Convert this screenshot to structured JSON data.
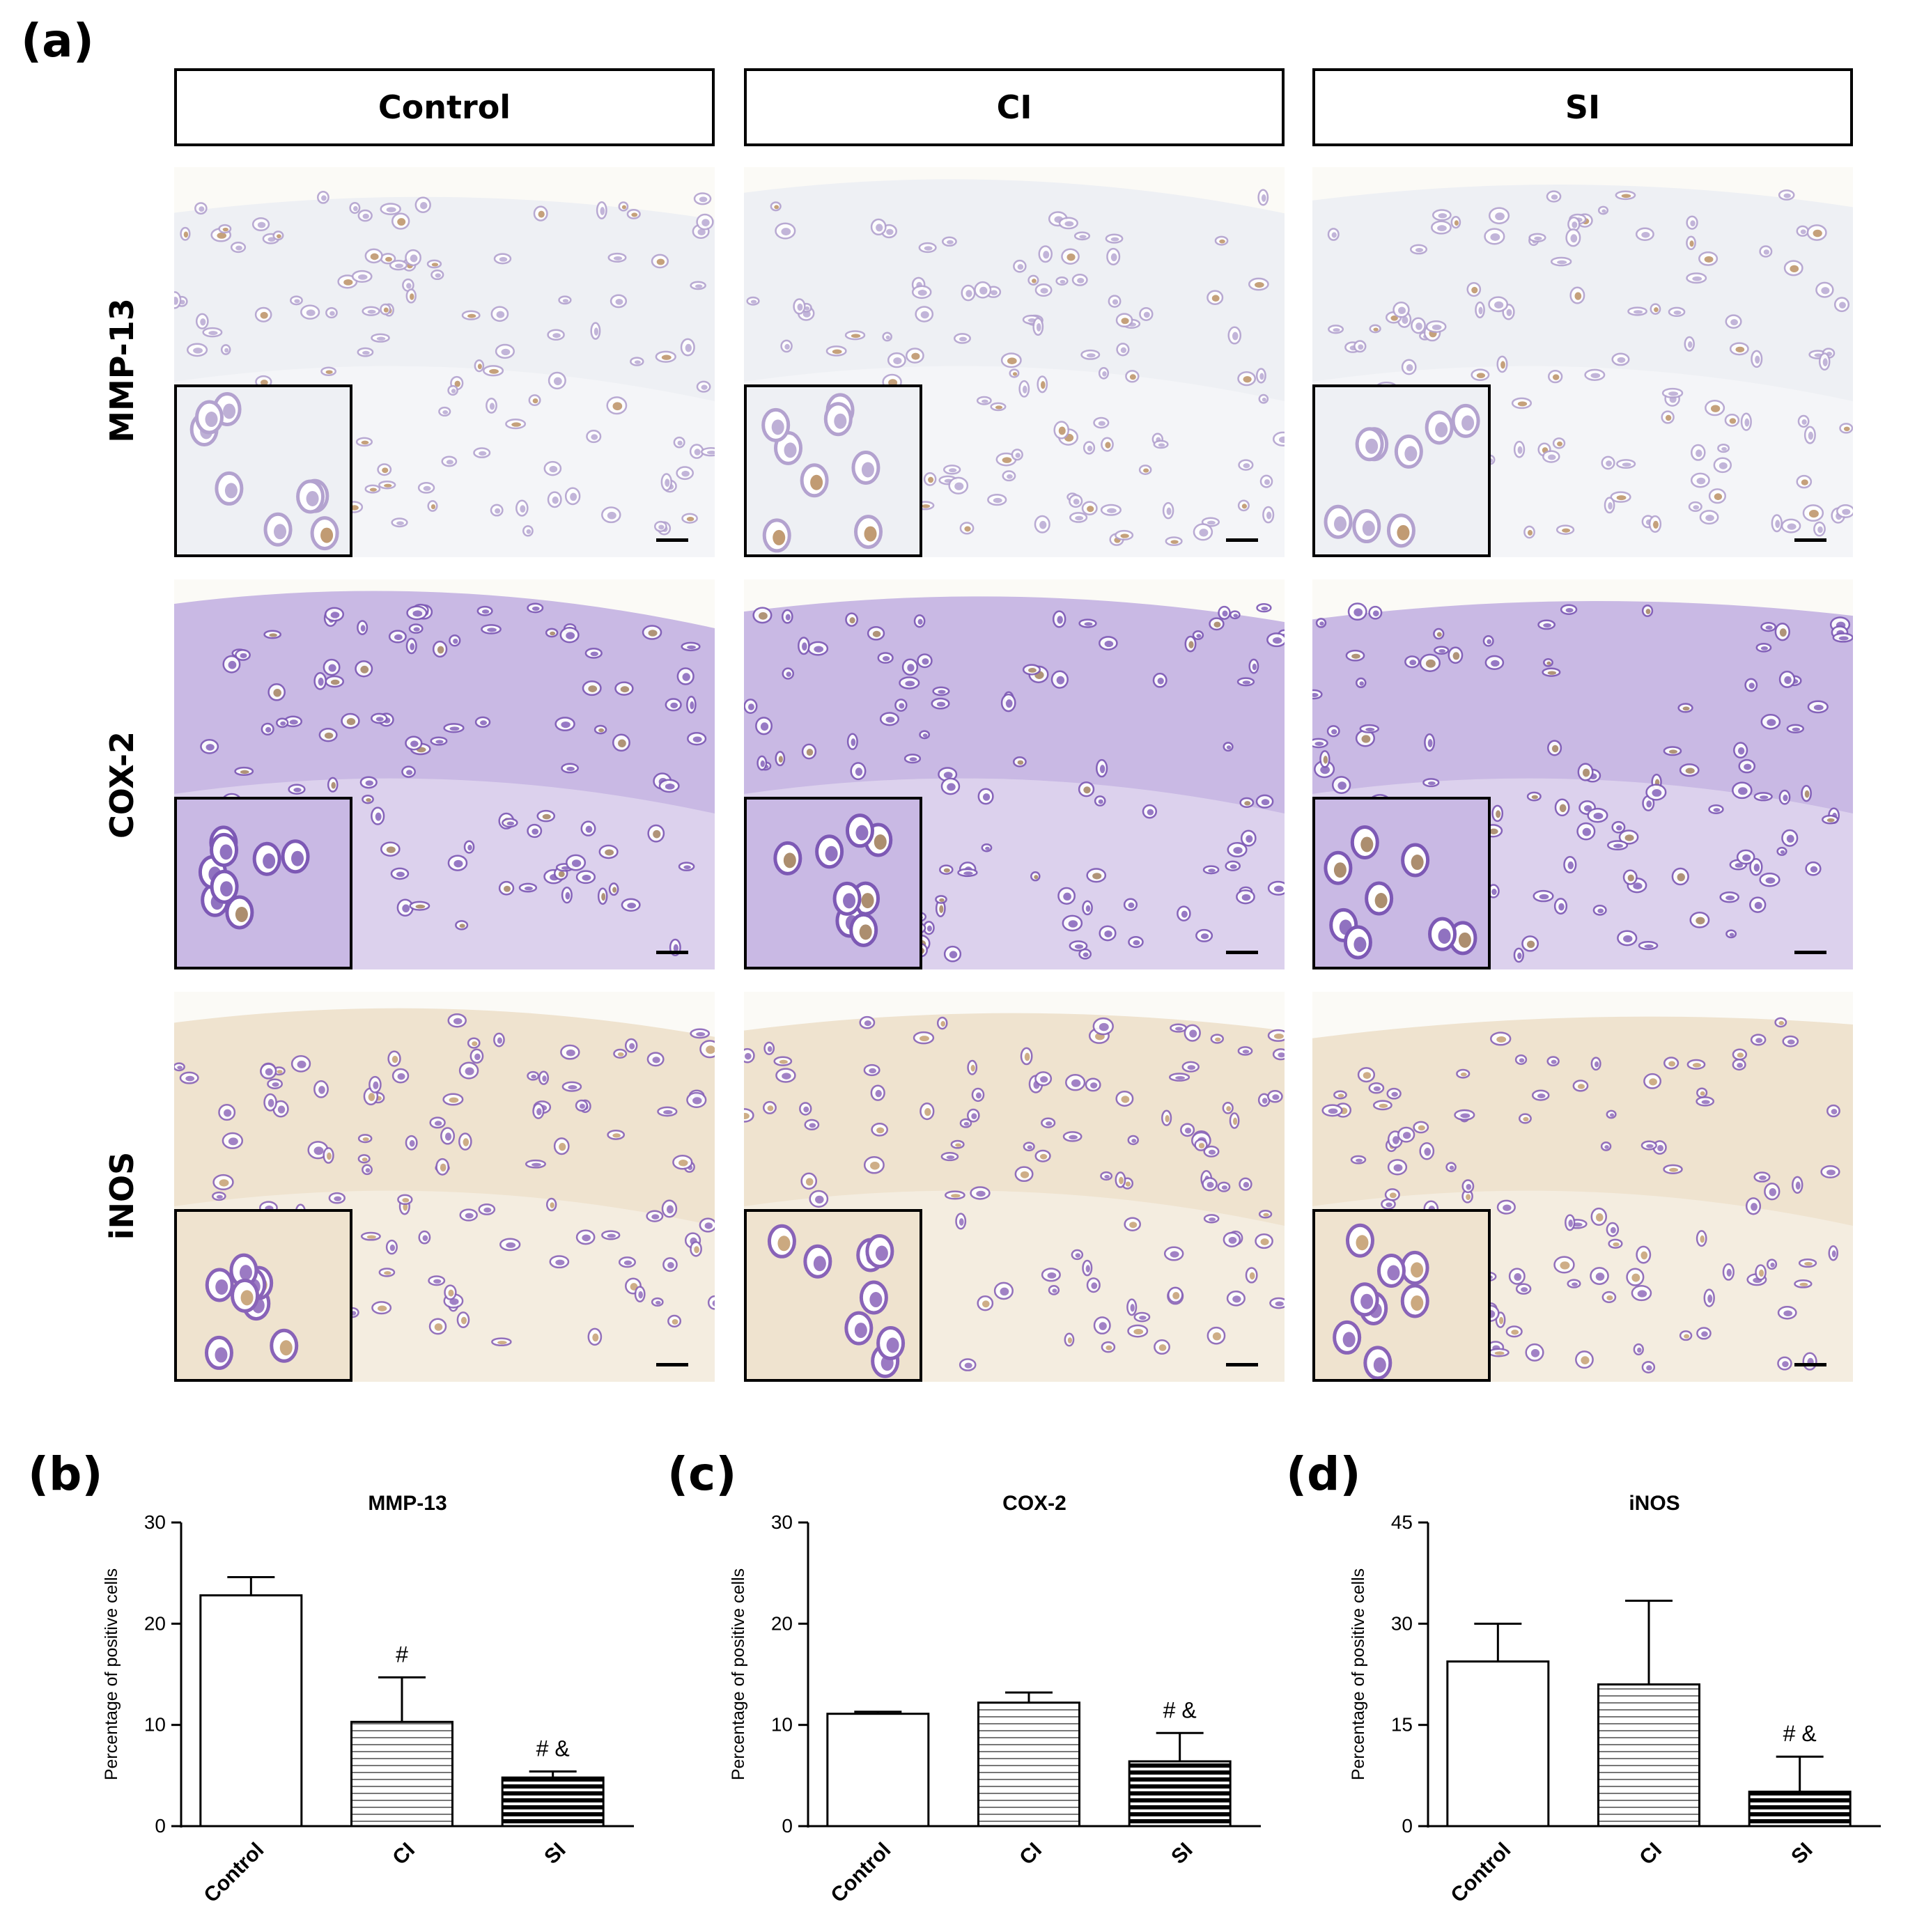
{
  "panel_labels": {
    "a": "(a)",
    "b": "(b)",
    "c": "(c)",
    "d": "(d)"
  },
  "columns": [
    "Control",
    "CI",
    "SI"
  ],
  "rows": [
    "MMP-13",
    "COX-2",
    "iNOS"
  ],
  "micrographs": {
    "stain_colors": {
      "MMP-13": {
        "bg": "#eef0f4",
        "cell": "#b3a2cf",
        "brown": "#b68a5a"
      },
      "COX-2": {
        "bg": "#c9b9e4",
        "cell": "#7d59b5",
        "brown": "#9d7a56"
      },
      "iNOS": {
        "bg": "#efe3cf",
        "cell": "#8963b8",
        "brown": "#c29a6a"
      }
    }
  },
  "chart_data": [
    {
      "type": "bar",
      "title": "MMP-13",
      "ylabel": "Percentage of positive cells",
      "categories": [
        "Control",
        "CI",
        "SI"
      ],
      "values": [
        22.8,
        10.3,
        4.8
      ],
      "errors": [
        1.8,
        4.4,
        0.6
      ],
      "annotations": [
        "",
        "#",
        "# &"
      ],
      "ylim": [
        0,
        30
      ],
      "yticks": [
        0,
        10,
        20,
        30
      ],
      "fill": [
        "white",
        "horizontal-stripes-light",
        "horizontal-stripes-dark"
      ]
    },
    {
      "type": "bar",
      "title": "COX-2",
      "ylabel": "Percentage of positive cells",
      "categories": [
        "Control",
        "CI",
        "SI"
      ],
      "values": [
        11.1,
        12.2,
        6.4
      ],
      "errors": [
        0.2,
        1.0,
        2.8
      ],
      "annotations": [
        "",
        "",
        "# &"
      ],
      "ylim": [
        0,
        30
      ],
      "yticks": [
        0,
        10,
        20,
        30
      ],
      "fill": [
        "white",
        "horizontal-stripes-light",
        "horizontal-stripes-dark"
      ]
    },
    {
      "type": "bar",
      "title": "iNOS",
      "ylabel": "Percentage of positive cells",
      "categories": [
        "Control",
        "CI",
        "SI"
      ],
      "values": [
        24.4,
        21.0,
        5.1
      ],
      "errors": [
        5.6,
        12.4,
        5.2
      ],
      "annotations": [
        "",
        "",
        "# &"
      ],
      "ylim": [
        0,
        45
      ],
      "yticks": [
        0,
        15,
        30,
        45
      ],
      "fill": [
        "white",
        "horizontal-stripes-light",
        "horizontal-stripes-dark"
      ]
    }
  ]
}
